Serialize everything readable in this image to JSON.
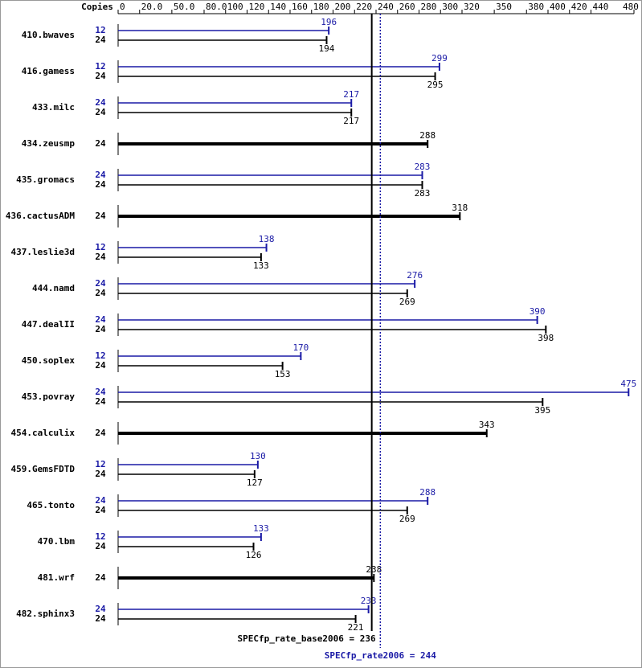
{
  "chart_data": {
    "type": "bar",
    "copies_header": "Copies",
    "categories": [
      "410.bwaves",
      "416.gamess",
      "433.milc",
      "434.zeusmp",
      "435.gromacs",
      "436.cactusADM",
      "437.leslie3d",
      "444.namd",
      "447.dealII",
      "450.soplex",
      "453.povray",
      "454.calculix",
      "459.GemsFDTD",
      "465.tonto",
      "470.lbm",
      "481.wrf",
      "482.sphinx3"
    ],
    "series": [
      {
        "color": "#1a1aa6",
        "copies": [
          12,
          12,
          24,
          null,
          24,
          null,
          12,
          24,
          24,
          12,
          24,
          null,
          12,
          24,
          12,
          null,
          24
        ],
        "values": [
          196,
          299,
          217,
          null,
          283,
          null,
          138,
          276,
          390,
          170,
          475,
          null,
          130,
          288,
          133,
          null,
          233
        ]
      },
      {
        "color": "#000000",
        "copies": [
          24,
          24,
          24,
          24,
          24,
          24,
          24,
          24,
          24,
          24,
          24,
          24,
          24,
          24,
          24,
          24,
          24
        ],
        "values": [
          194,
          295,
          217,
          288,
          283,
          318,
          133,
          269,
          398,
          153,
          395,
          343,
          127,
          269,
          126,
          238,
          221
        ]
      }
    ],
    "xlim": [
      0,
      480
    ],
    "xticks": [
      0,
      {
        "value": 20,
        "label": "20.0"
      },
      {
        "value": 50,
        "label": "50.0"
      },
      {
        "value": 80,
        "label": "80.0"
      },
      100,
      120,
      140,
      160,
      180,
      200,
      220,
      240,
      260,
      280,
      300,
      320,
      350,
      380,
      400,
      420,
      440,
      480
    ],
    "reference_lines": [
      {
        "label": "SPECfp_rate_base2006 = 236",
        "value": 236,
        "color": "#000000",
        "style": "solid"
      },
      {
        "label": "SPECfp_rate2006 = 244",
        "value": 244,
        "color": "#1a1aa6",
        "style": "dotted"
      }
    ]
  }
}
